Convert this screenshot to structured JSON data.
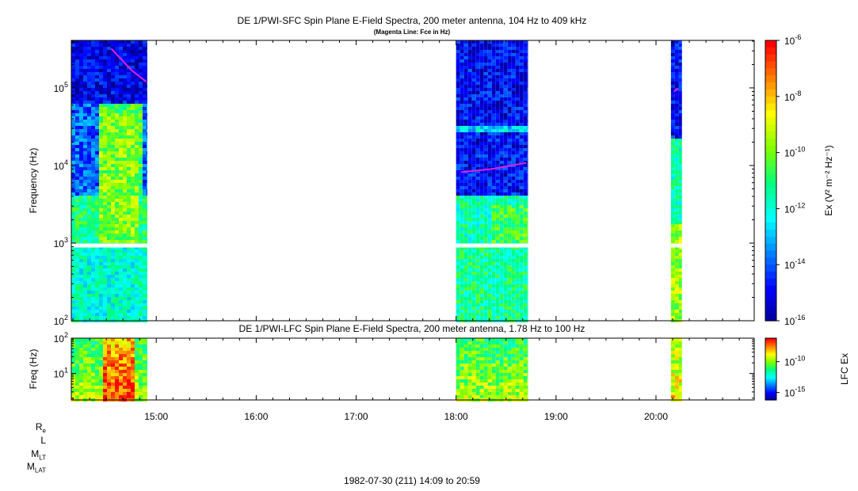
{
  "chart_data": [
    {
      "type": "heatmap",
      "title": "DE 1/PWI-SFC  Spin Plane E-Field Spectra, 200 meter antenna, 104 Hz to 409 kHz",
      "subtitle": "(Magenta Line: Fce in Hz)",
      "ylabel": "Frequency (Hz)",
      "yscale": "log",
      "ylim": [
        100,
        409000
      ],
      "yticks": [
        {
          "v": 100,
          "m": "10",
          "e": "2"
        },
        {
          "v": 1000,
          "m": "10",
          "e": "3"
        },
        {
          "v": 10000,
          "m": "10",
          "e": "4"
        },
        {
          "v": 100000,
          "m": "10",
          "e": "5"
        }
      ],
      "xlim_hours": [
        14.15,
        20.983
      ],
      "colorbar": {
        "label": "Ex (V² m⁻² Hz⁻¹)",
        "scale": "log",
        "range": [
          1e-16,
          1e-06
        ],
        "ticks": [
          {
            "v": 1e-06,
            "m": "10",
            "e": "-6"
          },
          {
            "v": 1e-08,
            "m": "10",
            "e": "-8"
          },
          {
            "v": 1e-10,
            "m": "10",
            "e": "-10"
          },
          {
            "v": 1e-12,
            "m": "10",
            "e": "-12"
          },
          {
            "v": 1e-14,
            "m": "10",
            "e": "-14"
          },
          {
            "v": 1e-16,
            "m": "10",
            "e": "-16"
          }
        ]
      },
      "data_intervals_hours": [
        [
          14.15,
          14.91
        ],
        [
          18.0,
          18.72
        ],
        [
          20.15,
          20.26
        ]
      ],
      "fce_line": [
        {
          "hour": 14.55,
          "freq_hz": 320000
        },
        {
          "hour": 14.75,
          "freq_hz": 170000
        },
        {
          "hour": 14.9,
          "freq_hz": 120000
        },
        {
          "hour": 18.05,
          "freq_hz": 8200
        },
        {
          "hour": 18.35,
          "freq_hz": 9000
        },
        {
          "hour": 18.7,
          "freq_hz": 10800
        },
        {
          "hour": 20.18,
          "freq_hz": 90000
        },
        {
          "hour": 20.22,
          "freq_hz": 98000
        }
      ]
    },
    {
      "type": "heatmap",
      "title": "DE 1/PWI-LFC  Spin Plane E-Field Spectra, 200 meter antenna, 1.78 Hz to 100 Hz",
      "ylabel": "Freq (Hz)",
      "yscale": "log",
      "ylim": [
        1.78,
        100
      ],
      "yticks": [
        {
          "v": 10,
          "m": "10",
          "e": "1"
        },
        {
          "v": 100,
          "m": "10",
          "e": "2"
        }
      ],
      "colorbar": {
        "label": "LFC Ex",
        "scale": "log",
        "ticks": [
          {
            "v": 1e-10,
            "m": "10",
            "e": "-10"
          },
          {
            "v": 1e-15,
            "m": "10",
            "e": "-15"
          }
        ]
      },
      "data_intervals_hours": [
        [
          14.15,
          14.91
        ],
        [
          18.0,
          18.72
        ],
        [
          20.15,
          20.26
        ]
      ]
    }
  ],
  "x_axis": {
    "ticks": [
      {
        "hour": 15,
        "label": "15:00"
      },
      {
        "hour": 16,
        "label": "16:00"
      },
      {
        "hour": 17,
        "label": "17:00"
      },
      {
        "hour": 18,
        "label": "18:00"
      },
      {
        "hour": 19,
        "label": "19:00"
      },
      {
        "hour": 20,
        "label": "20:00"
      }
    ],
    "minor_step_hours": 0.1666667
  },
  "ephemeris_labels": [
    {
      "main": "R",
      "sub": "e"
    },
    {
      "main": "L",
      "sub": ""
    },
    {
      "main": "M",
      "sub": "LT"
    },
    {
      "main": "M",
      "sub": "LAT"
    }
  ],
  "footer": "1982-07-30 (211) 14:09 to 20:59",
  "colors": {
    "fce_line": "#e020e0",
    "colormap": [
      "#00008f",
      "#0000ff",
      "#0080ff",
      "#00ffff",
      "#00ff80",
      "#80ff00",
      "#ffff00",
      "#ff8000",
      "#ff0000"
    ]
  }
}
